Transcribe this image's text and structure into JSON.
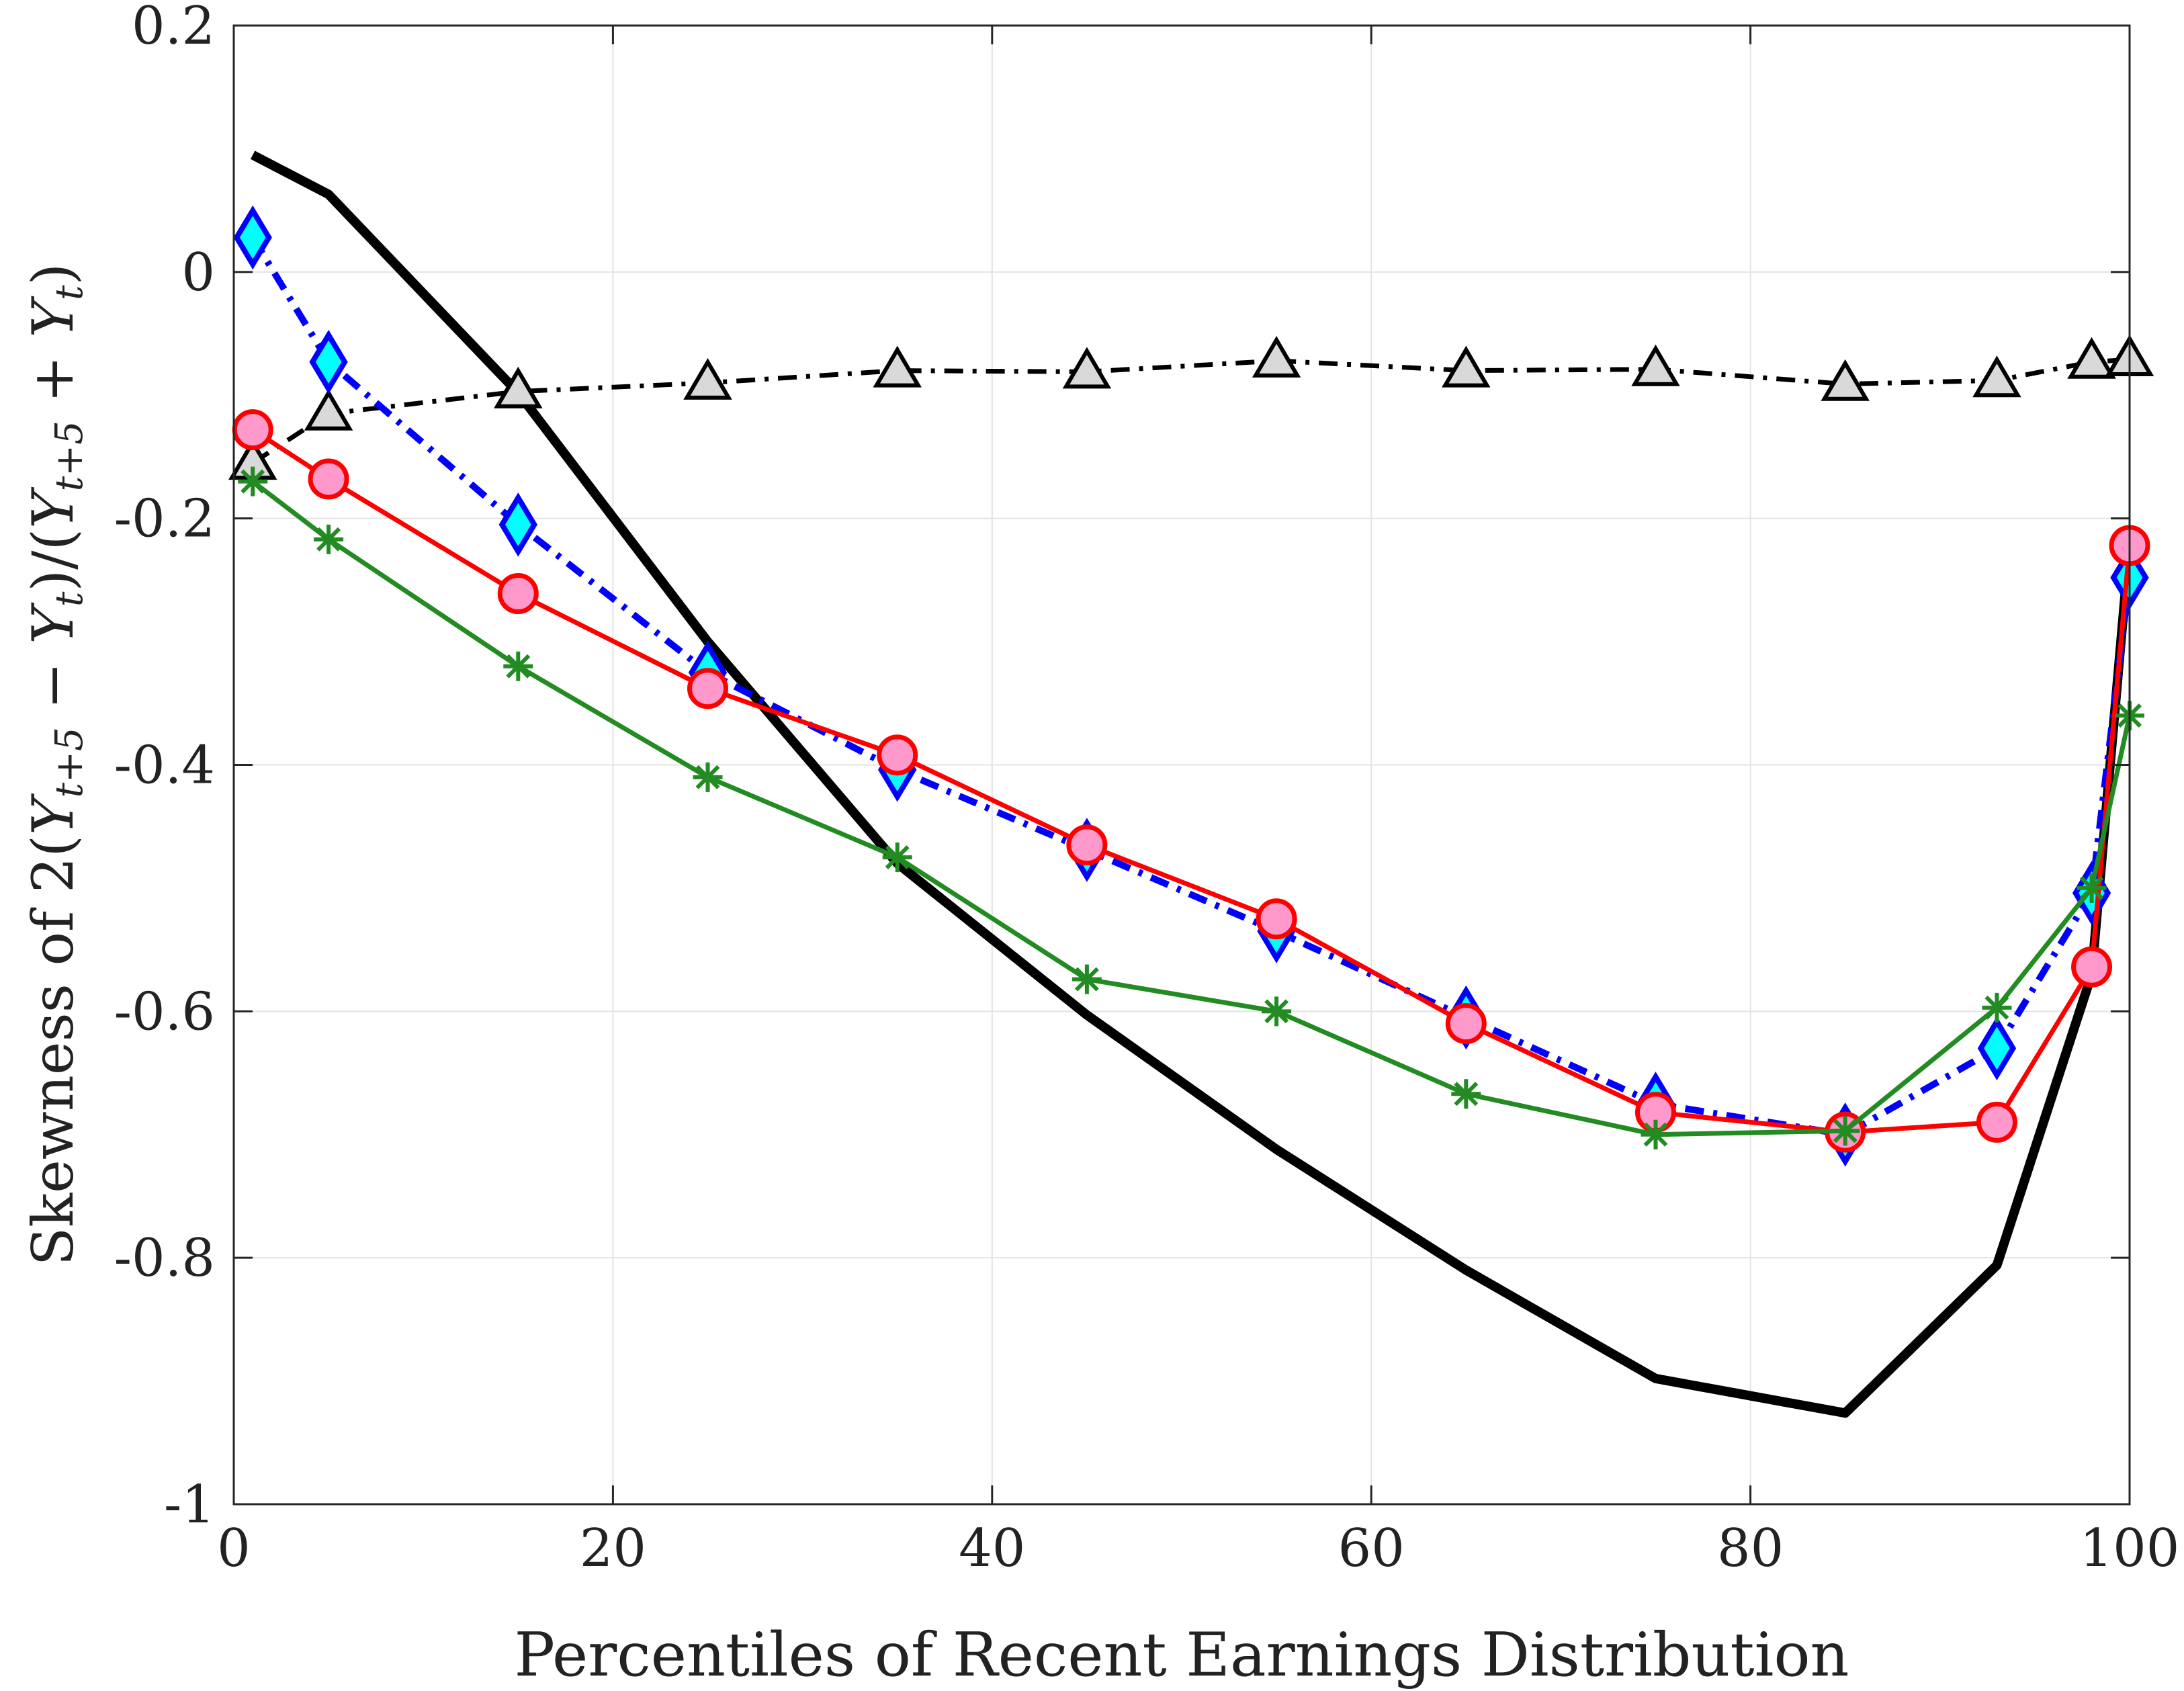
{
  "chart_data": {
    "type": "line",
    "title": "",
    "xlabel": "Percentiles of Recent Earnings Distribution",
    "ylabel": "Skewness of 2(Y_{t+5} − Y_t)/(Y_{t+5} + Y_t)",
    "ylabel_parts": {
      "prefix": "Skewness of 2(",
      "y1": "Y",
      "s1": "t+5",
      "minus": " − ",
      "y2": "Y",
      "s2": "t",
      "mid": ")/(",
      "y3": "Y",
      "s3": "t+5",
      "plus": " + ",
      "y4": "Y",
      "s4": "t",
      "suffix": ")"
    },
    "xlim": [
      0,
      100
    ],
    "ylim": [
      -1,
      0.2
    ],
    "xticks": [
      0,
      20,
      40,
      60,
      80,
      100
    ],
    "xtick_labels": [
      "0",
      "20",
      "40",
      "60",
      "80",
      "100"
    ],
    "yticks": [
      -1,
      -0.8,
      -0.6,
      -0.4,
      -0.2,
      0,
      0.2
    ],
    "ytick_labels": [
      "-1",
      "-0.8",
      "-0.6",
      "-0.4",
      "-0.2",
      "0",
      "0.2"
    ],
    "grid": true,
    "series": [
      {
        "name": "data-black-solid",
        "color": "#000000",
        "line": "solid",
        "marker": "none",
        "x": [
          1,
          5,
          15,
          25,
          35,
          45,
          55,
          65,
          75,
          85,
          93,
          98,
          100
        ],
        "y": [
          0.095,
          0.063,
          -0.098,
          -0.3,
          -0.48,
          -0.603,
          -0.712,
          -0.81,
          -0.898,
          -0.926,
          -0.806,
          -0.57,
          -0.22
        ]
      },
      {
        "name": "triangle-dashdot",
        "color": "#000000",
        "marker_fill": "#d9d9d9",
        "line": "dashdot",
        "marker": "triangle",
        "x": [
          1,
          5,
          15,
          25,
          35,
          45,
          55,
          65,
          75,
          85,
          93,
          98,
          100
        ],
        "y": [
          -0.155,
          -0.115,
          -0.097,
          -0.09,
          -0.08,
          -0.081,
          -0.072,
          -0.08,
          -0.079,
          -0.091,
          -0.088,
          -0.073,
          -0.071
        ]
      },
      {
        "name": "diamond-dashdot",
        "color": "#0000ff",
        "marker_fill": "#00ffff",
        "line": "dashdot",
        "marker": "diamond",
        "x": [
          1,
          5,
          15,
          25,
          35,
          45,
          55,
          65,
          75,
          85,
          93,
          98,
          100
        ],
        "y": [
          0.028,
          -0.073,
          -0.205,
          -0.325,
          -0.404,
          -0.469,
          -0.535,
          -0.605,
          -0.675,
          -0.7,
          -0.63,
          -0.504,
          -0.248
        ]
      },
      {
        "name": "circle-solid",
        "color": "#ff0000",
        "marker_fill": "#ff99cc",
        "line": "solid",
        "marker": "circle",
        "x": [
          1,
          5,
          15,
          25,
          35,
          45,
          55,
          65,
          75,
          85,
          93,
          98,
          100
        ],
        "y": [
          -0.128,
          -0.168,
          -0.261,
          -0.338,
          -0.392,
          -0.465,
          -0.525,
          -0.61,
          -0.682,
          -0.698,
          -0.69,
          -0.564,
          -0.222
        ]
      },
      {
        "name": "asterisk-solid",
        "color": "#228b22",
        "line": "solid",
        "marker": "asterisk",
        "x": [
          1,
          5,
          15,
          25,
          35,
          45,
          55,
          65,
          75,
          85,
          93,
          98,
          100
        ],
        "y": [
          -0.17,
          -0.217,
          -0.32,
          -0.41,
          -0.475,
          -0.574,
          -0.6,
          -0.667,
          -0.7,
          -0.697,
          -0.597,
          -0.5,
          -0.36
        ]
      }
    ]
  }
}
